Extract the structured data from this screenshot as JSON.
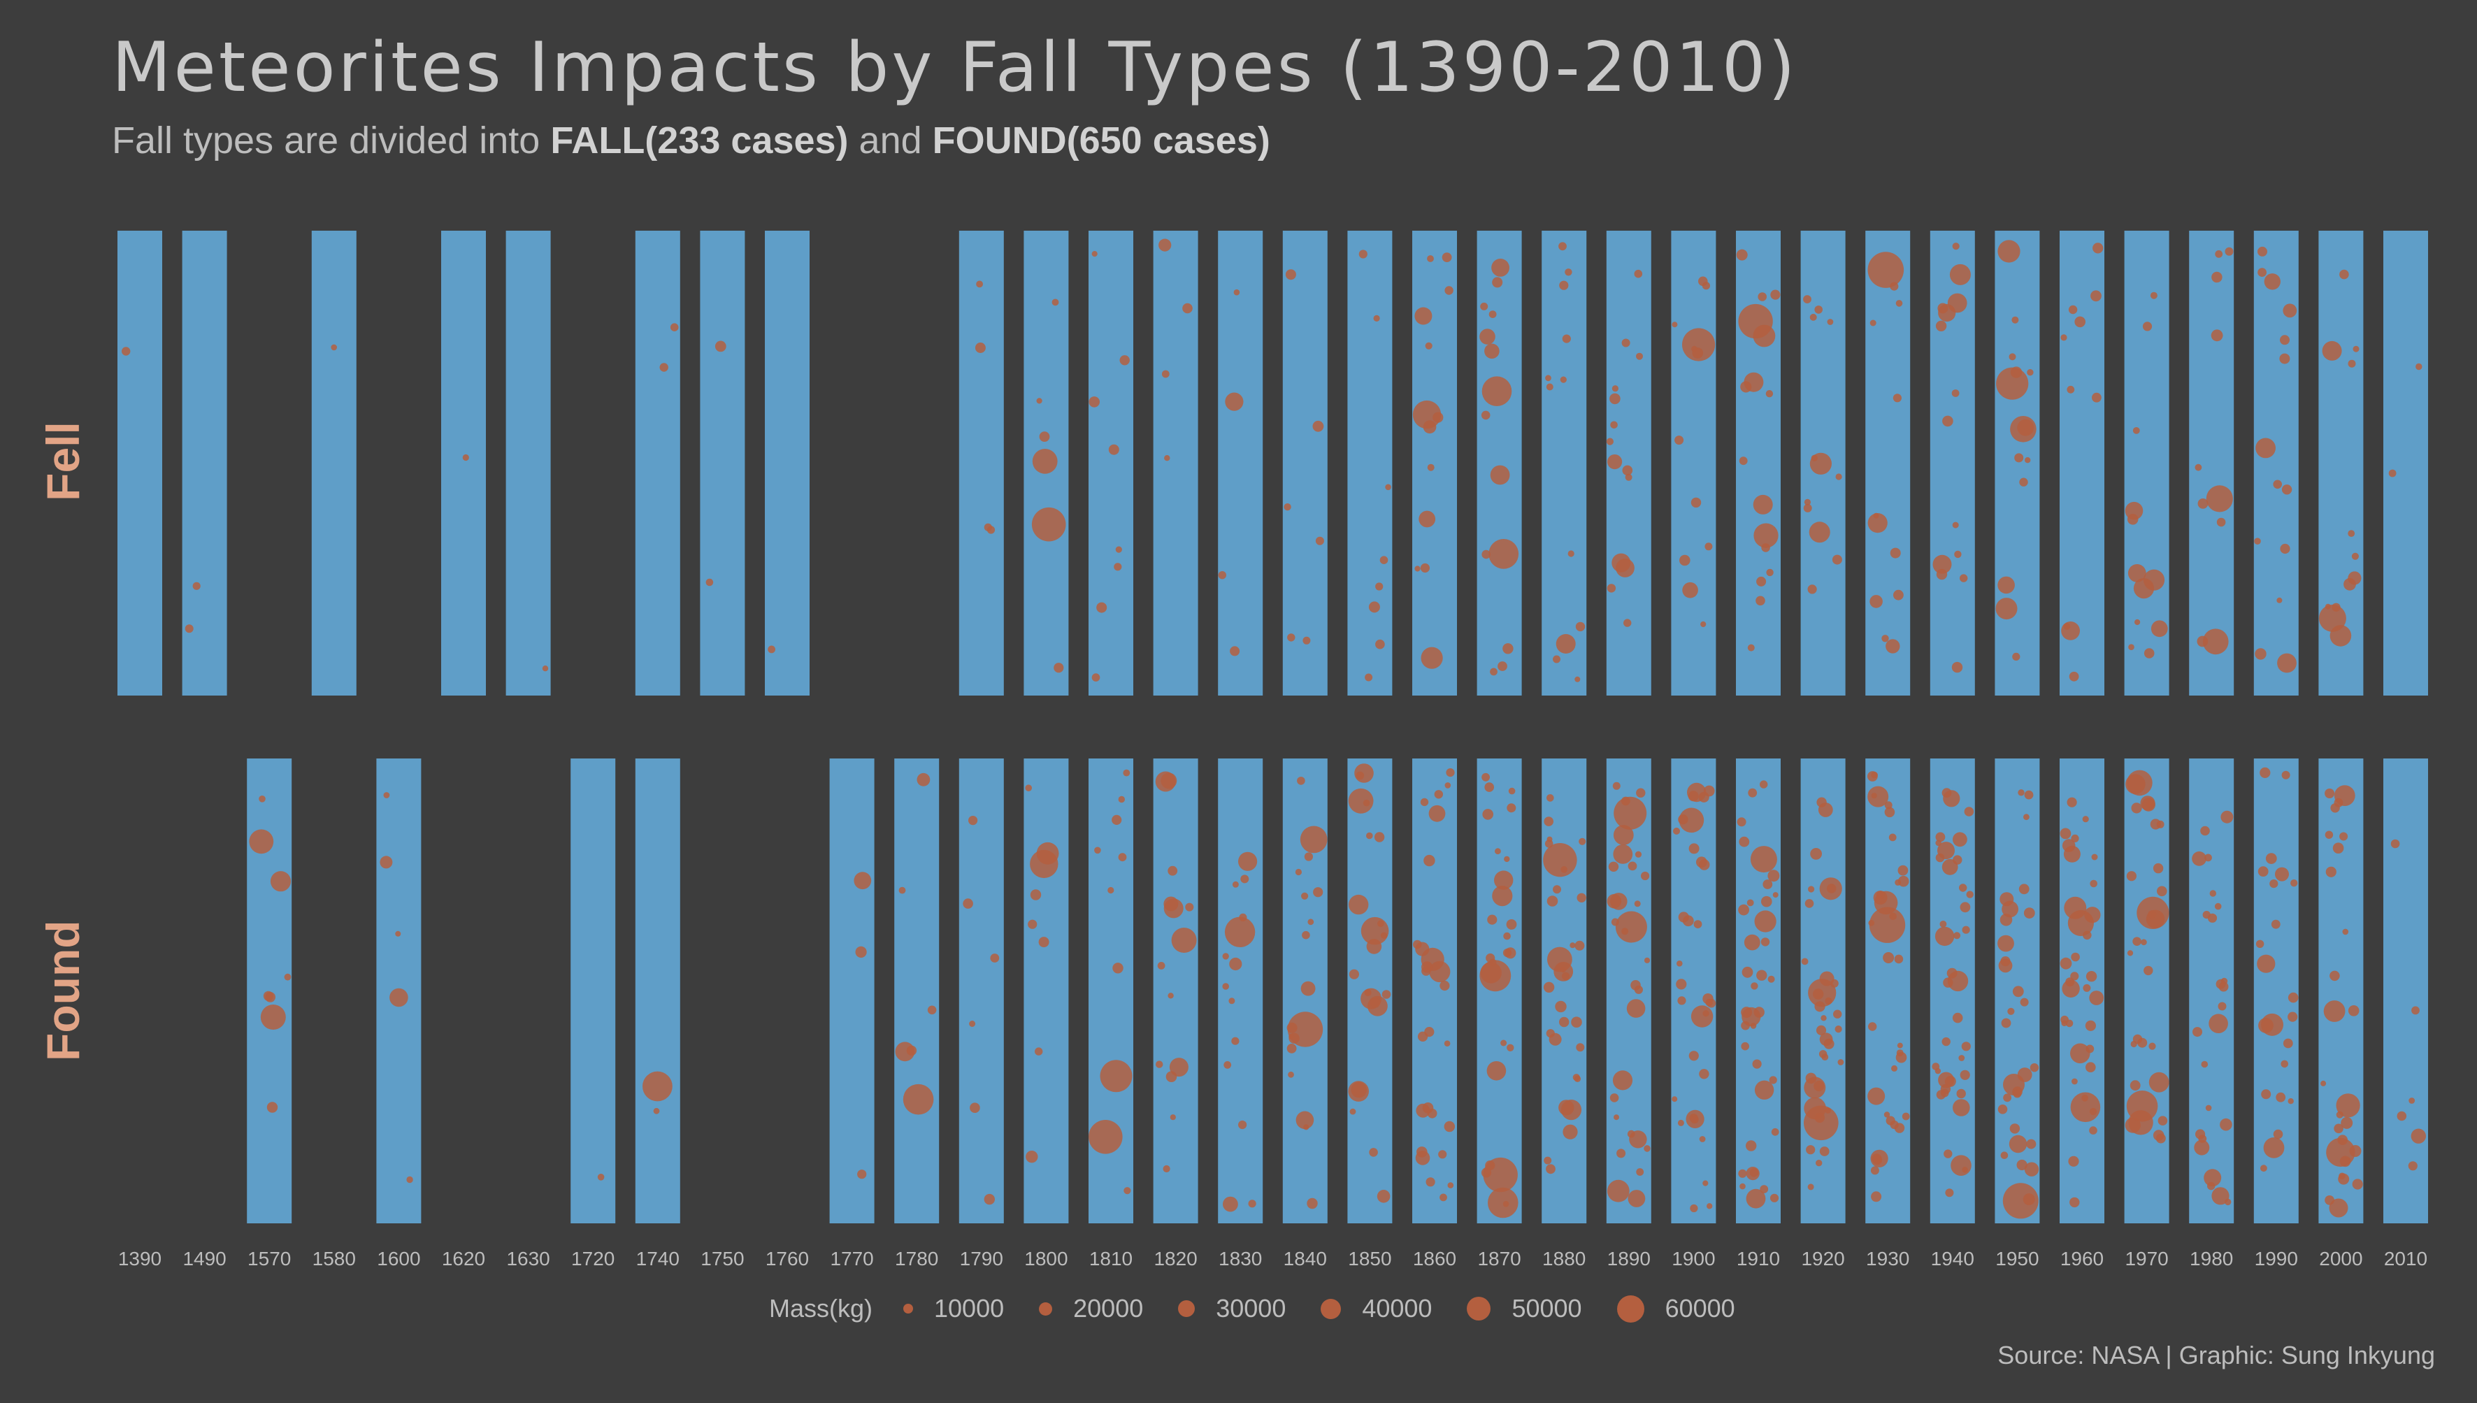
{
  "title": "Meteorites Impacts by Fall Types (1390-2010)",
  "subtitle": {
    "prefix": "Fall types are divided into ",
    "fall": "FALL(233 cases)",
    "middle": " and ",
    "found": "FOUND(650 cases)"
  },
  "source": "Source: NASA | Graphic: Sung Inkyung",
  "colors": {
    "background": "#3d3d3d",
    "bar": "#5f9ec8",
    "dot": "#b45f3f",
    "row_label": "#e2a486",
    "text": "#bdbdbd"
  },
  "chart_data": {
    "type": "scatter",
    "title": "Meteorites Impacts by Fall Types (1390-2010)",
    "x_categories": [
      "1390",
      "1490",
      "1570",
      "1580",
      "1600",
      "1620",
      "1630",
      "1720",
      "1740",
      "1750",
      "1760",
      "1770",
      "1780",
      "1790",
      "1800",
      "1810",
      "1820",
      "1830",
      "1840",
      "1850",
      "1860",
      "1870",
      "1880",
      "1890",
      "1900",
      "1910",
      "1920",
      "1930",
      "1940",
      "1950",
      "1960",
      "1970",
      "1980",
      "1990",
      "2000",
      "2010"
    ],
    "rows": [
      {
        "name": "Fell",
        "cases": 233,
        "present_decades": [
          "1390",
          "1490",
          "1580",
          "1620",
          "1630",
          "1740",
          "1750",
          "1760",
          "1790",
          "1800",
          "1810",
          "1820",
          "1830",
          "1840",
          "1850",
          "1860",
          "1870",
          "1880",
          "1890",
          "1900",
          "1910",
          "1920",
          "1930",
          "1940",
          "1950",
          "1960",
          "1970",
          "1980",
          "1990",
          "2000",
          "2010"
        ],
        "points_per_decade": [
          1,
          2,
          0,
          1,
          0,
          1,
          1,
          0,
          2,
          2,
          1,
          0,
          1,
          4,
          6,
          8,
          4,
          4,
          6,
          8,
          13,
          14,
          12,
          14,
          12,
          16,
          12,
          12,
          14,
          14,
          10,
          12,
          10,
          14,
          12,
          2
        ]
      },
      {
        "name": "Found",
        "cases": 650,
        "present_decades": [
          "1570",
          "1600",
          "1720",
          "1740",
          "1770",
          "1780",
          "1790",
          "1800",
          "1810",
          "1820",
          "1830",
          "1840",
          "1850",
          "1860",
          "1870",
          "1880",
          "1890",
          "1900",
          "1910",
          "1920",
          "1930",
          "1940",
          "1950",
          "1960",
          "1970",
          "1980",
          "1990",
          "2000",
          "2010"
        ],
        "points_per_decade": [
          0,
          0,
          8,
          0,
          5,
          0,
          0,
          1,
          2,
          0,
          0,
          3,
          6,
          6,
          8,
          10,
          14,
          14,
          18,
          22,
          26,
          26,
          30,
          30,
          32,
          36,
          34,
          34,
          38,
          30,
          34,
          30,
          24,
          22,
          26,
          6
        ]
      }
    ],
    "legend": {
      "title": "Mass(kg)",
      "values": [
        10000,
        20000,
        30000,
        40000,
        50000,
        60000
      ]
    },
    "size_encoding": "mass_kg"
  }
}
